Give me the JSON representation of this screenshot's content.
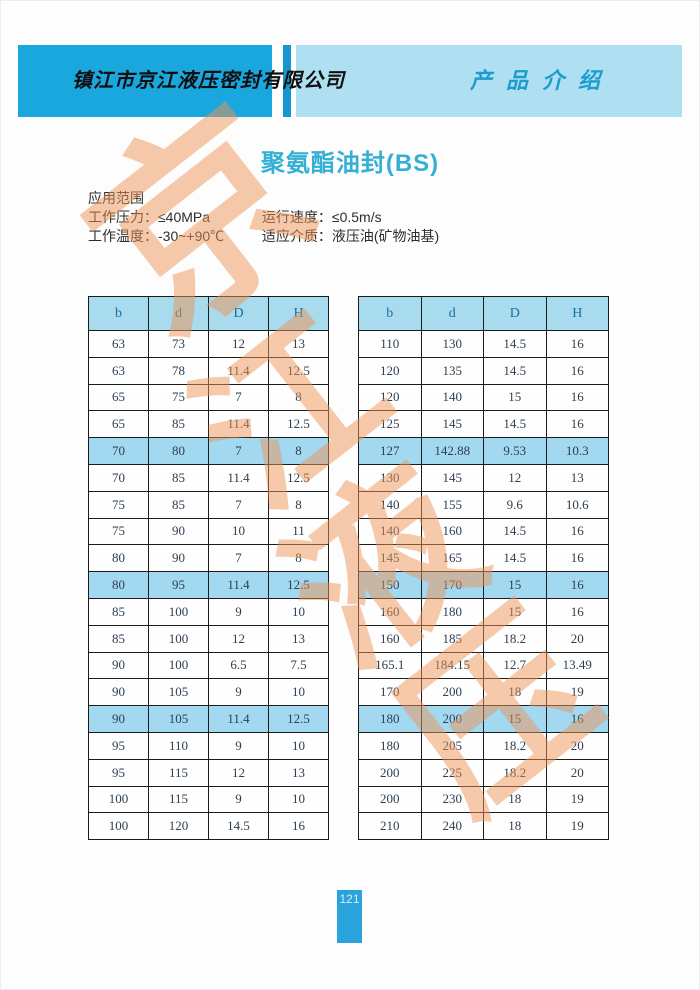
{
  "header": {
    "company_name": "镇江市京江液压密封有限公司",
    "section_title": "产品介绍"
  },
  "title": "聚氨酯油封(BS)",
  "specs": {
    "section_label": "应用范围",
    "line1_left": "工作压力：≤40MPa",
    "line1_right": "运行速度：≤0.5m/s",
    "line2_left": "工作温度：-30~+90℃",
    "line2_right": "适应介质：液压油(矿物油基)"
  },
  "tables": {
    "headers": [
      "b",
      "d",
      "D",
      "H"
    ],
    "left": {
      "highlighted": [
        4,
        9,
        14
      ],
      "rows": [
        [
          "63",
          "73",
          "12",
          "13"
        ],
        [
          "63",
          "78",
          "11.4",
          "12.5"
        ],
        [
          "65",
          "75",
          "7",
          "8"
        ],
        [
          "65",
          "85",
          "11.4",
          "12.5"
        ],
        [
          "70",
          "80",
          "7",
          "8"
        ],
        [
          "70",
          "85",
          "11.4",
          "12.5"
        ],
        [
          "75",
          "85",
          "7",
          "8"
        ],
        [
          "75",
          "90",
          "10",
          "11"
        ],
        [
          "80",
          "90",
          "7",
          "8"
        ],
        [
          "80",
          "95",
          "11.4",
          "12.5"
        ],
        [
          "85",
          "100",
          "9",
          "10"
        ],
        [
          "85",
          "100",
          "12",
          "13"
        ],
        [
          "90",
          "100",
          "6.5",
          "7.5"
        ],
        [
          "90",
          "105",
          "9",
          "10"
        ],
        [
          "90",
          "105",
          "11.4",
          "12.5"
        ],
        [
          "95",
          "110",
          "9",
          "10"
        ],
        [
          "95",
          "115",
          "12",
          "13"
        ],
        [
          "100",
          "115",
          "9",
          "10"
        ],
        [
          "100",
          "120",
          "14.5",
          "16"
        ]
      ]
    },
    "right": {
      "highlighted": [
        4,
        9,
        14
      ],
      "rows": [
        [
          "110",
          "130",
          "14.5",
          "16"
        ],
        [
          "120",
          "135",
          "14.5",
          "16"
        ],
        [
          "120",
          "140",
          "15",
          "16"
        ],
        [
          "125",
          "145",
          "14.5",
          "16"
        ],
        [
          "127",
          "142.88",
          "9.53",
          "10.3"
        ],
        [
          "130",
          "145",
          "12",
          "13"
        ],
        [
          "140",
          "155",
          "9.6",
          "10.6"
        ],
        [
          "140",
          "160",
          "14.5",
          "16"
        ],
        [
          "145",
          "165",
          "14.5",
          "16"
        ],
        [
          "150",
          "170",
          "15",
          "16"
        ],
        [
          "160",
          "180",
          "15",
          "16"
        ],
        [
          "160",
          "185",
          "18.2",
          "20"
        ],
        [
          "165.1",
          "184.15",
          "12.7",
          "13.49"
        ],
        [
          "170",
          "200",
          "18",
          "19"
        ],
        [
          "180",
          "200",
          "15",
          "16"
        ],
        [
          "180",
          "205",
          "18.2",
          "20"
        ],
        [
          "200",
          "225",
          "18.2",
          "20"
        ],
        [
          "200",
          "230",
          "18",
          "19"
        ],
        [
          "210",
          "240",
          "18",
          "19"
        ]
      ]
    }
  },
  "watermark": {
    "characters": [
      "京",
      "江",
      "液",
      "压"
    ]
  },
  "footer": {
    "page_number": "121"
  },
  "colors": {
    "banner_left": "#1aa7dd",
    "banner_right": "#aee0f2",
    "banner_stripe": "#1796cd",
    "title_text": "#35b0d5",
    "section_title_text": "#1e9ccd",
    "table_header_bg": "#a8dbee",
    "table_highlight_bg": "#a3d8f1",
    "table_header_text": "#17719f",
    "watermark": "#ec9456",
    "page_number_bg": "#2aa3dc"
  }
}
